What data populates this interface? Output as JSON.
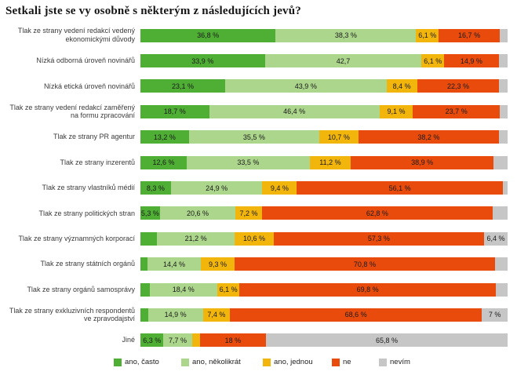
{
  "title": "Setkali jste se vy osobně s některým z následujících jevů?",
  "colors": {
    "ano_casto": "#4FAF35",
    "ano_nekolikrat": "#ACD68C",
    "ano_jednou": "#F2B50C",
    "ne": "#E84B0C",
    "nevim": "#C6C6C6"
  },
  "legend": [
    {
      "key": "ano-casto",
      "label": "ano, často",
      "color": "#4FAF35"
    },
    {
      "key": "ano-nekolikrat",
      "label": "ano, několikrát",
      "color": "#ACD68C"
    },
    {
      "key": "ano-jednou",
      "label": "ano, jednou",
      "color": "#F2B50C"
    },
    {
      "key": "ne",
      "label": "ne",
      "color": "#E84B0C"
    },
    {
      "key": "nevim",
      "label": "nevím",
      "color": "#C6C6C6"
    }
  ],
  "chart_data": {
    "type": "bar",
    "orientation": "horizontal",
    "stacked": true,
    "unit": "%",
    "axis_range": [
      0,
      100
    ],
    "grid": false,
    "legend_position": "bottom",
    "title": "Setkali jste se vy osobně s některým z následujících jevů?",
    "categories": [
      "Tlak ze strany vedení redakcí vedený ekonomickými důvody",
      "Nízká odborná úroveň novinářů",
      "Nízká etická úroveň novinářů",
      "Tlak ze strany vedení redakcí zaměřený na formu zpracování",
      "Tlak ze strany PR agentur",
      "Tlak ze strany inzerentů",
      "Tlak ze strany vlastníků médií",
      "Tlak ze strany politických stran",
      "Tlak ze strany významných korporací",
      "Tlak ze strany státních orgánů",
      "Tlak ze strany orgánů samosprávy",
      "Tlak ze strany exkluzivních respondentů ve zpravodajství",
      "Jiné"
    ],
    "series": [
      {
        "name": "ano, často",
        "key": "ano-casto",
        "color": "#4FAF35",
        "values": [
          36.8,
          33.9,
          23.1,
          18.7,
          13.2,
          12.6,
          8.3,
          5.3,
          4.5,
          2.0,
          2.5,
          2.1,
          6.3
        ],
        "labels": [
          "36,8 %",
          "33,9 %",
          "23,1 %",
          "18,7 %",
          "13,2 %",
          "12,6 %",
          "8,3 %",
          "5,3 %",
          "",
          "",
          "",
          "",
          "6,3 %"
        ]
      },
      {
        "name": "ano, několikrát",
        "key": "ano-nekolikrat",
        "color": "#ACD68C",
        "values": [
          38.3,
          42.7,
          43.9,
          46.4,
          35.5,
          33.5,
          24.9,
          20.6,
          21.2,
          14.4,
          18.4,
          14.9,
          7.7
        ],
        "labels": [
          "38,3 %",
          "42,7",
          "43,9 %",
          "46,4 %",
          "35,5 %",
          "33,5 %",
          "24,9 %",
          "20,6 %",
          "21,2 %",
          "14,4 %",
          "18,4 %",
          "14,9 %",
          "7,7 %"
        ]
      },
      {
        "name": "ano, jednou",
        "key": "ano-jednou",
        "color": "#F2B50C",
        "values": [
          6.1,
          6.1,
          8.4,
          9.1,
          10.7,
          11.2,
          9.4,
          7.2,
          10.6,
          9.3,
          6.1,
          7.4,
          2.2
        ],
        "labels": [
          "6,1 %",
          "6,1 %",
          "8,4 %",
          "9,1 %",
          "10,7 %",
          "11,2 %",
          "9,4 %",
          "7,2 %",
          "10,6 %",
          "9,3 %",
          "6,1 %",
          "7,4 %",
          ""
        ]
      },
      {
        "name": "ne",
        "key": "ne",
        "color": "#E84B0C",
        "values": [
          16.7,
          14.9,
          22.3,
          23.7,
          38.2,
          38.9,
          56.1,
          62.8,
          57.3,
          70.8,
          69.8,
          68.6,
          18.0
        ],
        "labels": [
          "16,7 %",
          "14,9 %",
          "22,3 %",
          "23,7 %",
          "38,2 %",
          "38,9 %",
          "56,1 %",
          "62,8 %",
          "57,3 %",
          "70,8 %",
          "69,8 %",
          "68,6 %",
          "18 %"
        ]
      },
      {
        "name": "nevím",
        "key": "nevim",
        "color": "#C6C6C6",
        "values": [
          2.1,
          2.4,
          2.3,
          2.1,
          2.4,
          3.8,
          1.3,
          4.1,
          6.4,
          3.5,
          3.2,
          7.0,
          65.8
        ],
        "labels": [
          "",
          "",
          "",
          "",
          "",
          "",
          "",
          "",
          "6,4 %",
          "",
          "",
          "7 %",
          "65,8 %"
        ]
      }
    ]
  }
}
